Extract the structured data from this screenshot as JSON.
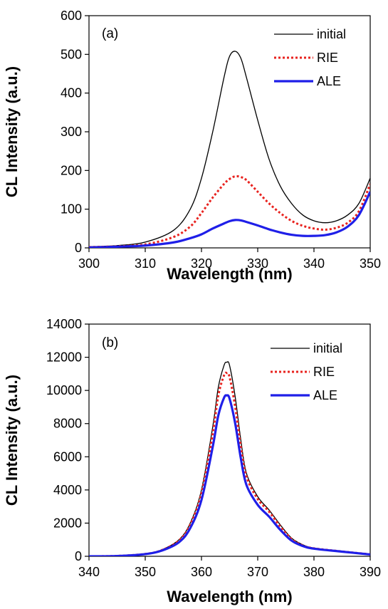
{
  "chart_data": [
    {
      "type": "line",
      "panel_label": "(a)",
      "xlabel": "Wavelength (nm)",
      "ylabel": "CL Intensity (a.u.)",
      "xlim": [
        300,
        350
      ],
      "ylim": [
        0,
        600
      ],
      "xticks": [
        300,
        310,
        320,
        330,
        340,
        350
      ],
      "yticks": [
        0,
        100,
        200,
        300,
        400,
        500,
        600
      ],
      "grid": false,
      "legend": "top-right",
      "series": [
        {
          "name": "initial",
          "color": "#000000",
          "style": "solid",
          "x": [
            300,
            305,
            310,
            315,
            318,
            320,
            322,
            324,
            325,
            326,
            327,
            328,
            330,
            332,
            334,
            336,
            338,
            340,
            342,
            344,
            346,
            348,
            350
          ],
          "y": [
            3,
            6,
            15,
            45,
            100,
            180,
            300,
            440,
            495,
            508,
            490,
            440,
            330,
            230,
            160,
            115,
            85,
            70,
            65,
            70,
            85,
            115,
            180
          ]
        },
        {
          "name": "RIE",
          "color": "#e8231f",
          "style": "dotted",
          "x": [
            300,
            305,
            310,
            315,
            318,
            320,
            322,
            324,
            325,
            326,
            327,
            328,
            330,
            332,
            334,
            336,
            338,
            340,
            342,
            344,
            346,
            348,
            350
          ],
          "y": [
            2,
            4,
            9,
            28,
            55,
            90,
            130,
            165,
            178,
            185,
            183,
            175,
            145,
            115,
            90,
            70,
            57,
            50,
            47,
            52,
            65,
            95,
            165
          ]
        },
        {
          "name": "ALE",
          "color": "#1f1fe8",
          "style": "solid",
          "x": [
            300,
            305,
            310,
            315,
            318,
            320,
            322,
            324,
            325,
            326,
            327,
            328,
            330,
            332,
            334,
            336,
            338,
            340,
            342,
            344,
            346,
            348,
            350
          ],
          "y": [
            1,
            3,
            6,
            14,
            25,
            35,
            50,
            63,
            69,
            72,
            71,
            67,
            58,
            48,
            40,
            34,
            31,
            31,
            33,
            40,
            55,
            85,
            145
          ]
        }
      ]
    },
    {
      "type": "line",
      "panel_label": "(b)",
      "xlabel": "Wavelength (nm)",
      "ylabel": "CL Intensity (a.u.)",
      "xlim": [
        340,
        390
      ],
      "ylim": [
        0,
        14000
      ],
      "xticks": [
        340,
        350,
        360,
        370,
        380,
        390
      ],
      "yticks": [
        0,
        2000,
        4000,
        6000,
        8000,
        10000,
        12000,
        14000
      ],
      "grid": false,
      "legend": "top-right",
      "series": [
        {
          "name": "initial",
          "color": "#000000",
          "style": "solid",
          "x": [
            340,
            345,
            350,
            353,
            356,
            358,
            360,
            362,
            363,
            364,
            364.5,
            365,
            366,
            367,
            368,
            370,
            372,
            374,
            376,
            378,
            380,
            385,
            390
          ],
          "y": [
            0,
            20,
            150,
            400,
            1000,
            2000,
            4000,
            7800,
            10200,
            11500,
            11700,
            11500,
            9600,
            7000,
            5000,
            3600,
            2800,
            1900,
            1100,
            700,
            500,
            300,
            120
          ]
        },
        {
          "name": "RIE",
          "color": "#e8231f",
          "style": "dotted",
          "x": [
            340,
            345,
            350,
            353,
            356,
            358,
            360,
            362,
            363,
            364,
            364.5,
            365,
            366,
            367,
            368,
            370,
            372,
            374,
            376,
            378,
            380,
            385,
            390
          ],
          "y": [
            0,
            20,
            140,
            380,
            950,
            1900,
            3800,
            7400,
            9700,
            10900,
            11050,
            10800,
            9000,
            6600,
            4800,
            3450,
            2700,
            1800,
            1050,
            650,
            480,
            290,
            120
          ]
        },
        {
          "name": "ALE",
          "color": "#1f1fe8",
          "style": "solid",
          "x": [
            340,
            345,
            350,
            353,
            356,
            358,
            360,
            362,
            363,
            364,
            364.5,
            365,
            366,
            367,
            368,
            370,
            372,
            374,
            376,
            378,
            380,
            385,
            390
          ],
          "y": [
            0,
            18,
            130,
            350,
            850,
            1700,
            3400,
            6600,
            8500,
            9550,
            9700,
            9500,
            8000,
            5900,
            4300,
            3100,
            2400,
            1600,
            950,
            620,
            460,
            280,
            110
          ]
        }
      ]
    }
  ]
}
